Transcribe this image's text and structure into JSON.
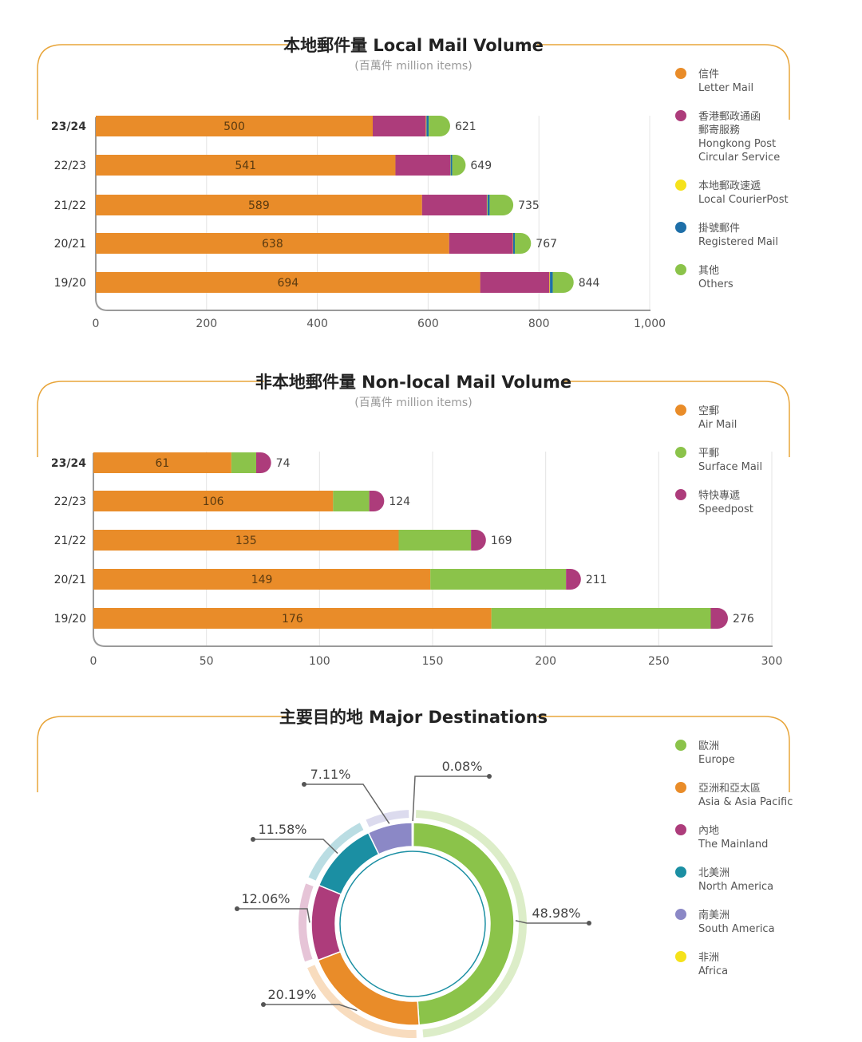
{
  "colors": {
    "orange": "#E98C29",
    "magenta": "#AD3C7B",
    "green": "#8BC34A",
    "yellow": "#F5E21B",
    "blue": "#1E6FA8",
    "teal": "#1B8FA3",
    "purple": "#8B88C6",
    "frame": "#E8A53A"
  },
  "chart_data": [
    {
      "type": "bar",
      "orientation": "horizontal",
      "stacked": true,
      "title": "本地郵件量 Local Mail Volume",
      "subtitle": "(百萬件 million items)",
      "categories": [
        "23/24",
        "22/23",
        "21/22",
        "20/21",
        "19/20"
      ],
      "xlim": [
        0,
        1000
      ],
      "xticks": [
        "0",
        "200",
        "400",
        "600",
        "800",
        "1,000"
      ],
      "grid": true,
      "legend_position": "right",
      "series": [
        {
          "name": "信件 Letter Mail",
          "zh": "信件",
          "en": [
            "Letter Mail"
          ],
          "color": "#E98C29",
          "values": [
            500,
            541,
            589,
            638,
            694
          ]
        },
        {
          "name": "香港郵政通函郵寄服務 Hongkong Post Circular Service",
          "zh": [
            "香港郵政通函",
            "郵寄服務"
          ],
          "en": [
            "Hongkong Post",
            "Circular Service"
          ],
          "color": "#AD3C7B",
          "values": [
            96,
            99,
            117,
            115,
            125
          ]
        },
        {
          "name": "本地郵政速遞 Local CourierPost",
          "zh": "本地郵政速遞",
          "en": [
            "Local CourierPost"
          ],
          "color": "#F5E21B",
          "values": [
            1,
            0.5,
            1,
            0.5,
            1
          ]
        },
        {
          "name": "掛號郵件 Registered Mail",
          "zh": "掛號郵件",
          "en": [
            "Registered Mail"
          ],
          "color": "#1E6FA8",
          "values": [
            4,
            3,
            4,
            3,
            5
          ]
        },
        {
          "name": "其他 Others",
          "zh": "其他",
          "en": [
            "Others"
          ],
          "color": "#8BC34A",
          "values": [
            20,
            5.5,
            24,
            10.5,
            19
          ]
        }
      ],
      "segment_labels": [
        "500",
        "541",
        "589",
        "638",
        "694"
      ],
      "totals": [
        "621",
        "649",
        "735",
        "767",
        "844"
      ]
    },
    {
      "type": "bar",
      "orientation": "horizontal",
      "stacked": true,
      "title": "非本地郵件量 Non-local Mail Volume",
      "subtitle": "(百萬件 million items)",
      "categories": [
        "23/24",
        "22/23",
        "21/22",
        "20/21",
        "19/20"
      ],
      "xlim": [
        0,
        300
      ],
      "xticks": [
        "0",
        "50",
        "100",
        "150",
        "200",
        "250",
        "300"
      ],
      "grid": true,
      "legend_position": "right",
      "series": [
        {
          "name": "空郵 Air Mail",
          "zh": "空郵",
          "en": [
            "Air Mail"
          ],
          "color": "#E98C29",
          "values": [
            61,
            106,
            135,
            149,
            176
          ]
        },
        {
          "name": "平郵 Surface Mail",
          "zh": "平郵",
          "en": [
            "Surface Mail"
          ],
          "color": "#8BC34A",
          "values": [
            11,
            16,
            32,
            60,
            97
          ]
        },
        {
          "name": "特快專遞 Speedpost",
          "zh": "特快專遞",
          "en": [
            "Speedpost"
          ],
          "color": "#AD3C7B",
          "values": [
            2,
            2,
            2,
            2,
            3
          ]
        }
      ],
      "segment_labels": [
        "61",
        "106",
        "135",
        "149",
        "176"
      ],
      "totals": [
        "74",
        "124",
        "169",
        "211",
        "276"
      ]
    },
    {
      "type": "pie",
      "donut": true,
      "title": "主要目的地 Major Destinations",
      "legend_position": "right",
      "slices": [
        {
          "name": "歐洲 Europe",
          "zh": "歐洲",
          "en": "Europe",
          "value": 48.98,
          "label": "48.98%",
          "color": "#8BC34A"
        },
        {
          "name": "亞洲和亞太區 Asia & Asia Pacific",
          "zh": "亞洲和亞太區",
          "en": "Asia & Asia Pacific",
          "value": 20.19,
          "label": "20.19%",
          "color": "#E98C29"
        },
        {
          "name": "內地 The Mainland",
          "zh": "內地",
          "en": "The Mainland",
          "value": 12.06,
          "label": "12.06%",
          "color": "#AD3C7B"
        },
        {
          "name": "北美洲 North America",
          "zh": "北美洲",
          "en": "North America",
          "value": 11.58,
          "label": "11.58%",
          "color": "#1B8FA3"
        },
        {
          "name": "南美洲 South America",
          "zh": "南美洲",
          "en": "South America",
          "value": 7.11,
          "label": "7.11%",
          "color": "#8B88C6"
        },
        {
          "name": "非洲 Africa",
          "zh": "非洲",
          "en": "Africa",
          "value": 0.08,
          "label": "0.08%",
          "color": "#F5E21B"
        }
      ]
    }
  ]
}
